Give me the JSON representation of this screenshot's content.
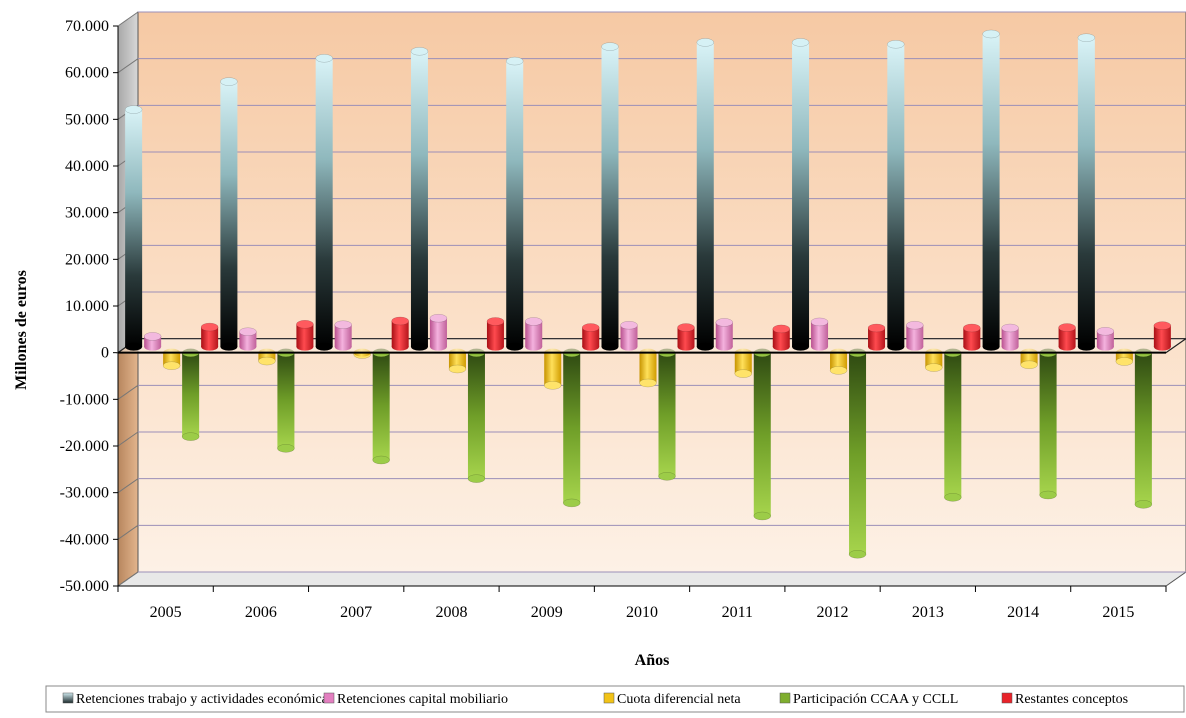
{
  "chart_data": {
    "type": "bar",
    "xlabel": "Años",
    "ylabel": "Millones de euros",
    "categories": [
      "2005",
      "2006",
      "2007",
      "2008",
      "2009",
      "2010",
      "2011",
      "2012",
      "2013",
      "2014",
      "2015"
    ],
    "ylim": [
      -50000,
      70000
    ],
    "yticks": [
      70000,
      60000,
      50000,
      40000,
      30000,
      20000,
      10000,
      0,
      -10000,
      -20000,
      -30000,
      -40000,
      -50000
    ],
    "ytick_labels": [
      "70.000",
      "60.000",
      "50.000",
      "40.000",
      "30.000",
      "20.000",
      "10.000",
      "0",
      "-10.000",
      "-20.000",
      "-30.000",
      "-40.000",
      "-50.000"
    ],
    "grid": true,
    "legend_position": "bottom",
    "series": [
      {
        "name": "Retenciones trabajo y actividades económicas",
        "color": "#bfe8ee",
        "values": [
          50800,
          56800,
          61800,
          63300,
          61200,
          64300,
          65200,
          65200,
          64800,
          67000,
          66200
        ]
      },
      {
        "name": "Retenciones capital mobiliario",
        "color": "#e37fc0",
        "values": [
          2200,
          3200,
          4700,
          6100,
          5400,
          4600,
          5200,
          5300,
          4600,
          4000,
          3300
        ]
      },
      {
        "name": "Cuota diferencial neta",
        "color": "#f2c318",
        "values": [
          -2800,
          -1800,
          -400,
          -3500,
          -7000,
          -6500,
          -4500,
          -3800,
          -3200,
          -2600,
          -1900
        ]
      },
      {
        "name": "Participación CCAA y  CCLL",
        "color": "#7fae2f",
        "values": [
          -18000,
          -20500,
          -23000,
          -27000,
          -32200,
          -26500,
          -35000,
          -43200,
          -31000,
          -30500,
          -32500
        ]
      },
      {
        "name": "Restantes conceptos",
        "color": "#e8232a",
        "values": [
          4200,
          4800,
          5500,
          5400,
          4100,
          4100,
          3800,
          4000,
          4000,
          4100,
          4500
        ]
      }
    ]
  }
}
